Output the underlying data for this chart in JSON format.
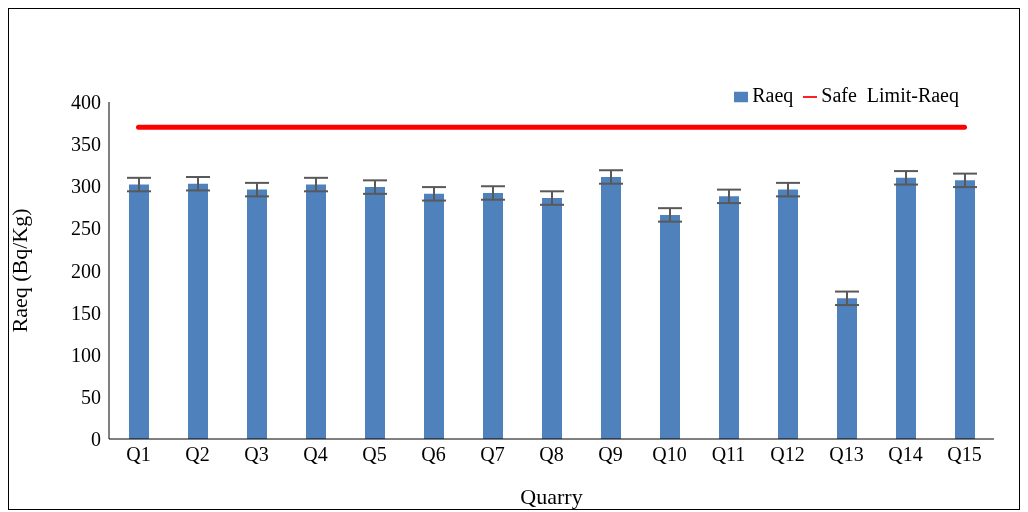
{
  "chart_data": {
    "type": "bar",
    "xlabel": "Quarry",
    "ylabel": "Raeq (Bq/Kg)",
    "categories": [
      "Q1",
      "Q2",
      "Q3",
      "Q4",
      "Q5",
      "Q6",
      "Q7",
      "Q8",
      "Q9",
      "Q10",
      "Q11",
      "Q12",
      "Q13",
      "Q14",
      "Q15"
    ],
    "series": [
      {
        "name": "Raeq",
        "color": "#4f81bd",
        "values": [
          302,
          303,
          296,
          302,
          299,
          291,
          292,
          286,
          311,
          266,
          288,
          296,
          167,
          310,
          307
        ],
        "errors": [
          8,
          8,
          8,
          8,
          8,
          8,
          8,
          8,
          8,
          8,
          8,
          8,
          8,
          8,
          8
        ]
      },
      {
        "name": "Safe  Limit-Raeq",
        "type": "line",
        "color": "#ff0000",
        "values": [
          370,
          370,
          370,
          370,
          370,
          370,
          370,
          370,
          370,
          370,
          370,
          370,
          370,
          370,
          370
        ]
      }
    ],
    "ylim": [
      0,
      400
    ],
    "yticks": [
      0,
      50,
      100,
      150,
      200,
      250,
      300,
      350,
      400
    ],
    "grid": false,
    "legend": "top right"
  }
}
